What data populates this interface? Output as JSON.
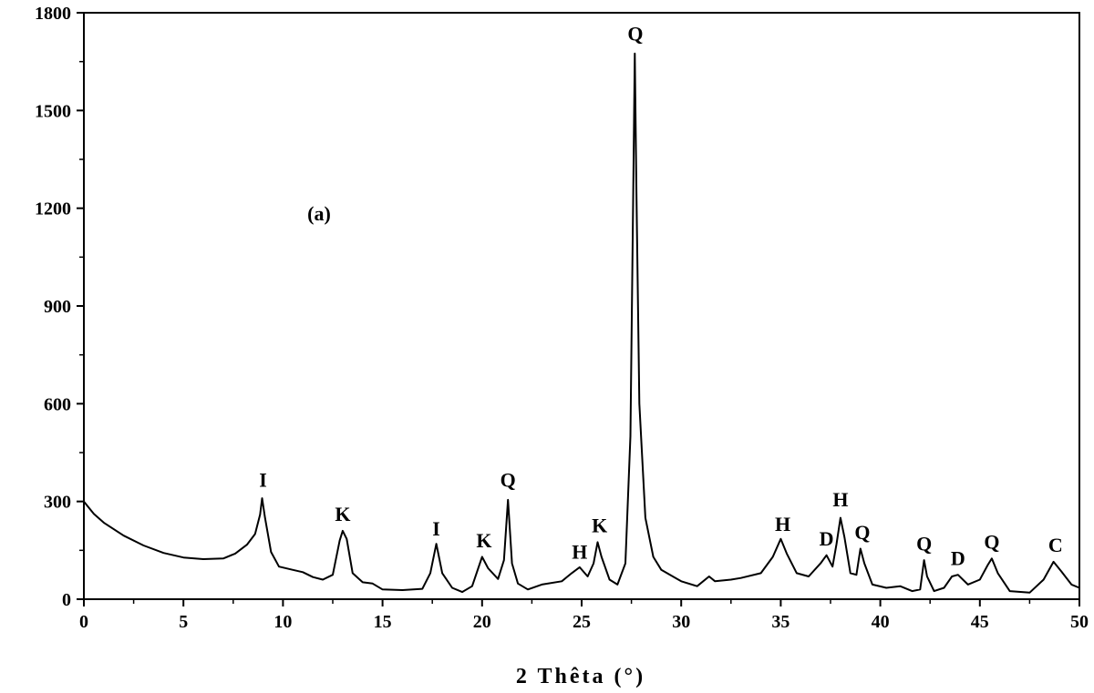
{
  "chart_data": {
    "type": "line",
    "title": "",
    "panel_label": "(a)",
    "xlabel": "2 Thêta (°)",
    "ylabel": "",
    "xlim": [
      0,
      50
    ],
    "ylim": [
      0,
      1800
    ],
    "x_ticks": [
      0,
      5,
      10,
      15,
      20,
      25,
      30,
      35,
      40,
      45,
      50
    ],
    "y_ticks": [
      0,
      300,
      600,
      900,
      1200,
      1500,
      1800
    ],
    "grid": false,
    "legend": "none",
    "line_color": "#000000",
    "series": [
      {
        "points": [
          [
            0,
            300
          ],
          [
            0.5,
            262
          ],
          [
            1,
            235
          ],
          [
            2,
            195
          ],
          [
            3,
            165
          ],
          [
            4,
            142
          ],
          [
            5,
            128
          ],
          [
            6,
            123
          ],
          [
            7,
            125
          ],
          [
            7.6,
            140
          ],
          [
            8.2,
            168
          ],
          [
            8.6,
            200
          ],
          [
            8.85,
            260
          ],
          [
            8.95,
            310
          ],
          [
            9.1,
            250
          ],
          [
            9.4,
            145
          ],
          [
            9.8,
            100
          ],
          [
            10.5,
            90
          ],
          [
            11,
            83
          ],
          [
            11.5,
            68
          ],
          [
            12,
            60
          ],
          [
            12.5,
            75
          ],
          [
            12.85,
            180
          ],
          [
            13.0,
            210
          ],
          [
            13.2,
            185
          ],
          [
            13.5,
            80
          ],
          [
            14,
            52
          ],
          [
            14.5,
            48
          ],
          [
            15,
            30
          ],
          [
            16,
            28
          ],
          [
            17,
            32
          ],
          [
            17.4,
            80
          ],
          [
            17.7,
            170
          ],
          [
            18.0,
            80
          ],
          [
            18.5,
            35
          ],
          [
            19,
            22
          ],
          [
            19.5,
            40
          ],
          [
            20.0,
            130
          ],
          [
            20.3,
            95
          ],
          [
            20.8,
            62
          ],
          [
            21.1,
            120
          ],
          [
            21.3,
            305
          ],
          [
            21.5,
            110
          ],
          [
            21.8,
            48
          ],
          [
            22.3,
            30
          ],
          [
            23,
            45
          ],
          [
            24,
            55
          ],
          [
            24.5,
            80
          ],
          [
            24.9,
            98
          ],
          [
            25.3,
            70
          ],
          [
            25.6,
            110
          ],
          [
            25.8,
            175
          ],
          [
            26.0,
            130
          ],
          [
            26.4,
            60
          ],
          [
            26.8,
            45
          ],
          [
            27.2,
            110
          ],
          [
            27.45,
            500
          ],
          [
            27.6,
            1300
          ],
          [
            27.67,
            1675
          ],
          [
            27.75,
            1250
          ],
          [
            27.9,
            600
          ],
          [
            28.2,
            250
          ],
          [
            28.6,
            130
          ],
          [
            29,
            90
          ],
          [
            30,
            55
          ],
          [
            30.8,
            40
          ],
          [
            31.4,
            70
          ],
          [
            31.7,
            55
          ],
          [
            32.5,
            60
          ],
          [
            33,
            65
          ],
          [
            34,
            80
          ],
          [
            34.6,
            130
          ],
          [
            35.0,
            185
          ],
          [
            35.3,
            140
          ],
          [
            35.8,
            80
          ],
          [
            36.4,
            70
          ],
          [
            37.0,
            110
          ],
          [
            37.3,
            135
          ],
          [
            37.6,
            100
          ],
          [
            37.8,
            170
          ],
          [
            38.0,
            250
          ],
          [
            38.2,
            190
          ],
          [
            38.5,
            80
          ],
          [
            38.8,
            75
          ],
          [
            39.0,
            155
          ],
          [
            39.2,
            110
          ],
          [
            39.6,
            45
          ],
          [
            40.3,
            35
          ],
          [
            41.0,
            40
          ],
          [
            41.6,
            25
          ],
          [
            42.0,
            30
          ],
          [
            42.2,
            120
          ],
          [
            42.35,
            70
          ],
          [
            42.7,
            25
          ],
          [
            43.2,
            35
          ],
          [
            43.6,
            70
          ],
          [
            43.9,
            75
          ],
          [
            44.4,
            45
          ],
          [
            45.0,
            60
          ],
          [
            45.4,
            105
          ],
          [
            45.6,
            125
          ],
          [
            45.9,
            80
          ],
          [
            46.5,
            25
          ],
          [
            47.5,
            20
          ],
          [
            48.2,
            60
          ],
          [
            48.7,
            115
          ],
          [
            49.1,
            85
          ],
          [
            49.6,
            45
          ],
          [
            50.0,
            35
          ]
        ]
      }
    ],
    "annotations": [
      {
        "text": "I",
        "x": 9.0,
        "y": 345
      },
      {
        "text": "K",
        "x": 13.0,
        "y": 240
      },
      {
        "text": "I",
        "x": 17.7,
        "y": 195
      },
      {
        "text": "K",
        "x": 20.1,
        "y": 160
      },
      {
        "text": "Q",
        "x": 21.3,
        "y": 345
      },
      {
        "text": "H",
        "x": 24.9,
        "y": 125
      },
      {
        "text": "K",
        "x": 25.9,
        "y": 205
      },
      {
        "text": "Q",
        "x": 27.7,
        "y": 1715
      },
      {
        "text": "H",
        "x": 35.1,
        "y": 210
      },
      {
        "text": "D",
        "x": 37.3,
        "y": 165
      },
      {
        "text": "H",
        "x": 38.0,
        "y": 285
      },
      {
        "text": "Q",
        "x": 39.1,
        "y": 185
      },
      {
        "text": "Q",
        "x": 42.2,
        "y": 150
      },
      {
        "text": "D",
        "x": 43.9,
        "y": 105
      },
      {
        "text": "Q",
        "x": 45.6,
        "y": 155
      },
      {
        "text": "C",
        "x": 48.8,
        "y": 145
      }
    ]
  }
}
